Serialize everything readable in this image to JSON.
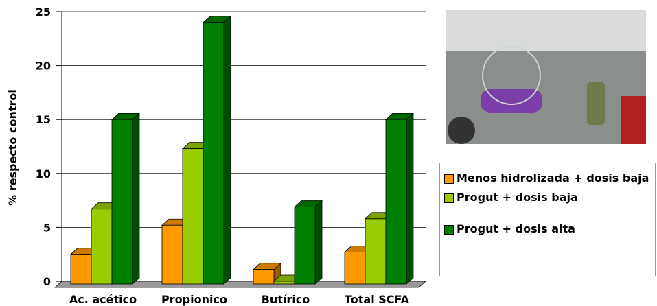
{
  "chart_data": {
    "type": "bar3d",
    "y_label": "% respecto control",
    "categories": [
      "Ac. acético",
      "Propionico",
      "Butírico",
      "Total SCFA"
    ],
    "series": [
      {
        "name": "Menos hidrolizada + dosis baja",
        "color": "#ff9900",
        "values": [
          2.5,
          5.2,
          1.1,
          2.7
        ]
      },
      {
        "name": "Progut + dosis baja",
        "color": "#99cc00",
        "values": [
          6.7,
          12.3,
          0,
          5.8
        ]
      },
      {
        "name": "Progut + dosis alta",
        "color": "#008000",
        "values": [
          15,
          24,
          6.9,
          15
        ]
      }
    ],
    "ylim": [
      0,
      25
    ],
    "yticks": [
      0,
      5,
      10,
      15,
      20,
      25
    ],
    "grid": true
  }
}
